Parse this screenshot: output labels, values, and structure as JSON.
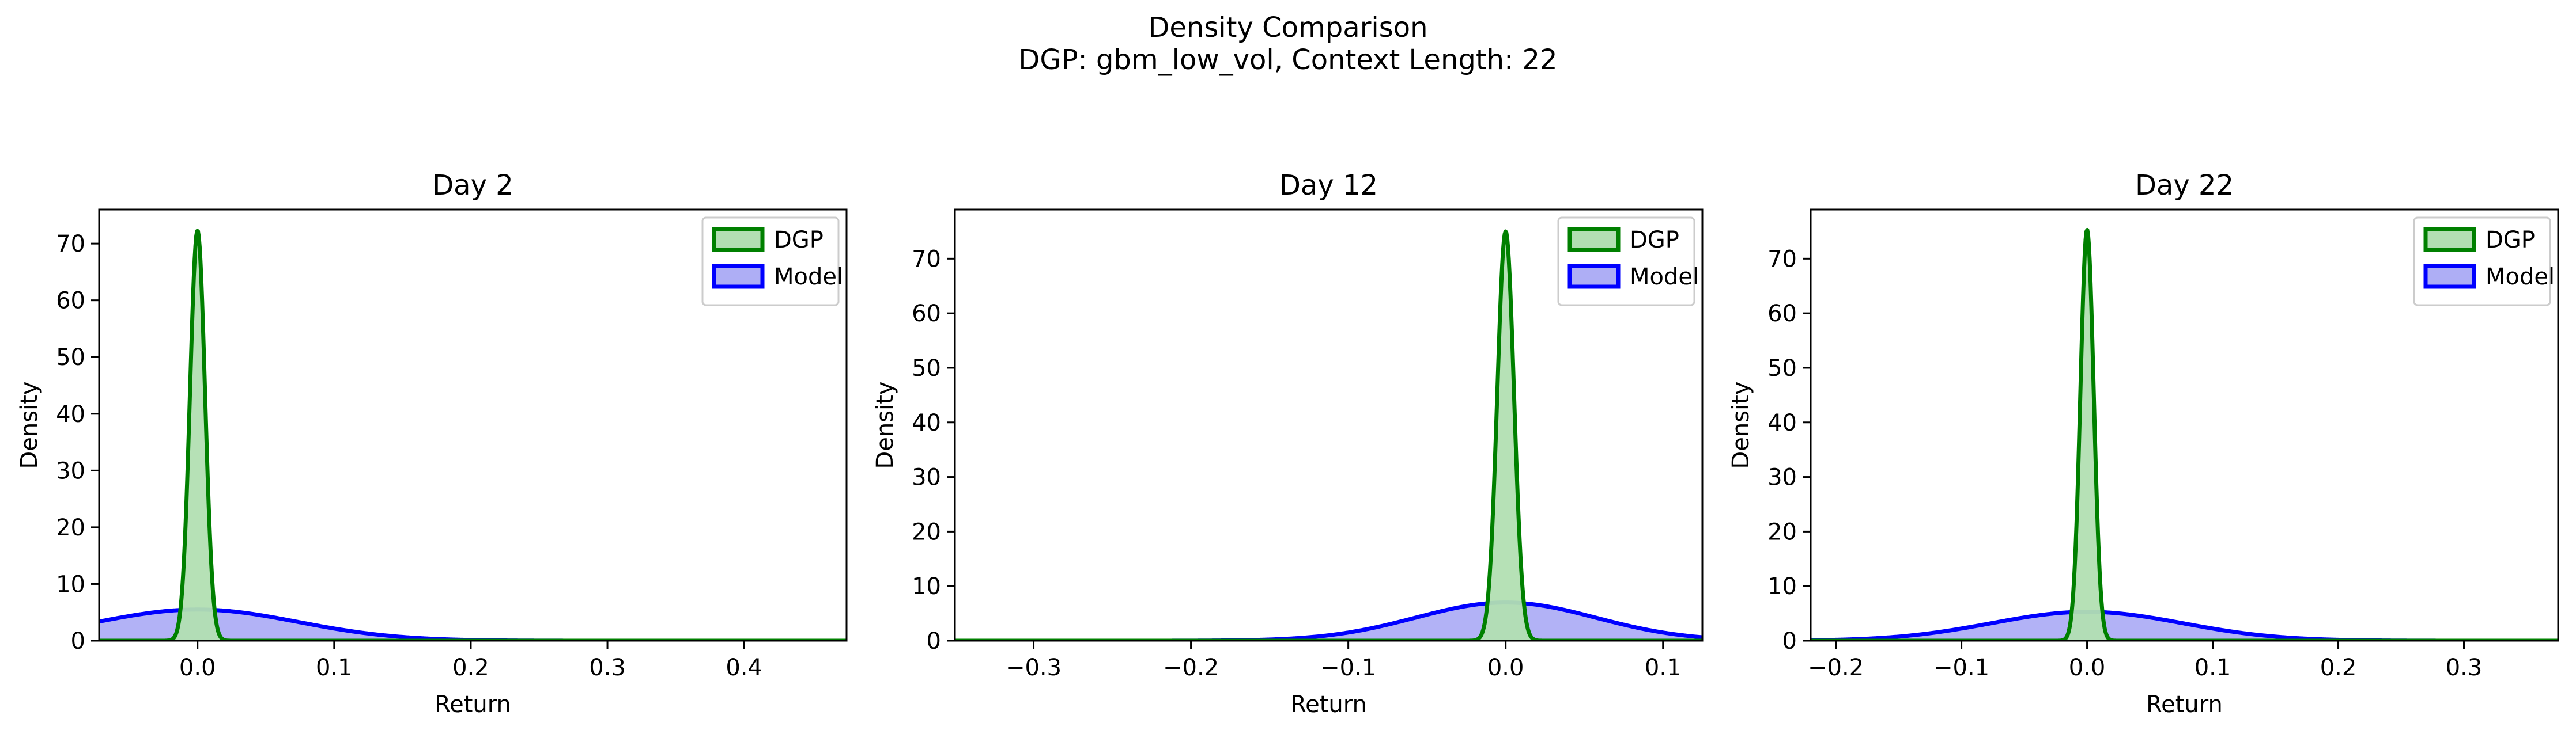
{
  "figure": {
    "title_line1": "Density Comparison",
    "title_line2": "DGP: gbm_low_vol, Context Length: 22"
  },
  "colors": {
    "dgp_line": "#008000",
    "dgp_fill": "#b2dfb2",
    "model_line": "#0000ff",
    "model_fill": "#aeaef5",
    "overlap_line": "#006060"
  },
  "chart_data": [
    {
      "type": "area",
      "title": "Day 2",
      "xlabel": "Return",
      "ylabel": "Density",
      "xlim": [
        -0.072,
        0.475
      ],
      "ylim": [
        0,
        76
      ],
      "xticks": [
        0.0,
        0.1,
        0.2,
        0.3,
        0.4
      ],
      "xtick_labels": [
        "0.0",
        "0.1",
        "0.2",
        "0.3",
        "0.4"
      ],
      "yticks": [
        0,
        10,
        20,
        30,
        40,
        50,
        60,
        70
      ],
      "ytick_labels": [
        "0",
        "10",
        "20",
        "30",
        "40",
        "50",
        "60",
        "70"
      ],
      "legend_position": "top-right",
      "series": [
        {
          "name": "DGP",
          "distribution": "normal",
          "mean": 0.0,
          "std": 0.0055,
          "peak": 72.3
        },
        {
          "name": "Model",
          "distribution": "normal",
          "mean": 0.0,
          "std": 0.073,
          "peak": 5.5
        }
      ]
    },
    {
      "type": "area",
      "title": "Day 12",
      "xlabel": "Return",
      "ylabel": "Density",
      "xlim": [
        -0.35,
        0.125
      ],
      "ylim": [
        0,
        79
      ],
      "xticks": [
        -0.3,
        -0.2,
        -0.1,
        0.0,
        0.1
      ],
      "xtick_labels": [
        "−0.3",
        "−0.2",
        "−0.1",
        "0.0",
        "0.1"
      ],
      "yticks": [
        0,
        10,
        20,
        30,
        40,
        50,
        60,
        70
      ],
      "ytick_labels": [
        "0",
        "10",
        "20",
        "30",
        "40",
        "50",
        "60",
        "70"
      ],
      "legend_position": "top-right",
      "series": [
        {
          "name": "DGP",
          "distribution": "normal",
          "mean": 0.0,
          "std": 0.0053,
          "peak": 75.0
        },
        {
          "name": "Model",
          "distribution": "normal",
          "mean": 0.0,
          "std": 0.057,
          "peak": 7.0
        }
      ]
    },
    {
      "type": "area",
      "title": "Day 22",
      "xlabel": "Return",
      "ylabel": "Density",
      "xlim": [
        -0.22,
        0.375
      ],
      "ylim": [
        0,
        79
      ],
      "xticks": [
        -0.2,
        -0.1,
        0.0,
        0.1,
        0.2,
        0.3
      ],
      "xtick_labels": [
        "−0.2",
        "−0.1",
        "0.0",
        "0.1",
        "0.2",
        "0.3"
      ],
      "yticks": [
        0,
        10,
        20,
        30,
        40,
        50,
        60,
        70
      ],
      "ytick_labels": [
        "0",
        "10",
        "20",
        "30",
        "40",
        "50",
        "60",
        "70"
      ],
      "legend_position": "top-right",
      "series": [
        {
          "name": "DGP",
          "distribution": "normal",
          "mean": 0.0,
          "std": 0.0053,
          "peak": 75.3
        },
        {
          "name": "Model",
          "distribution": "normal",
          "mean": 0.0,
          "std": 0.076,
          "peak": 5.3
        }
      ]
    }
  ]
}
